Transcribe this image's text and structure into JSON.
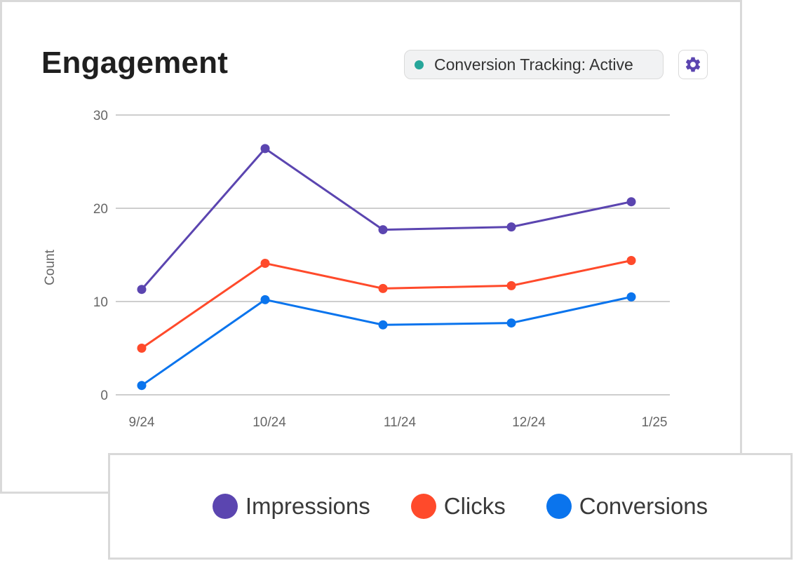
{
  "header": {
    "title": "Engagement",
    "status": {
      "label": "Conversion Tracking: Active",
      "dot_color": "#26a69a"
    },
    "settings_icon": "gear-icon",
    "settings_color": "#5b45b0"
  },
  "chart_data": {
    "type": "line",
    "title": "Engagement",
    "ylabel": "Count",
    "xlabel": "",
    "categories": [
      "9/24",
      "10/24",
      "11/24",
      "12/24",
      "1/25"
    ],
    "ylim": [
      0,
      30
    ],
    "yticks": [
      0,
      10,
      20,
      30
    ],
    "grid": true,
    "legend_position": "bottom",
    "series": [
      {
        "name": "Impressions",
        "color": "#5b45b0",
        "values": [
          11.3,
          26.4,
          17.7,
          18.0,
          20.7
        ]
      },
      {
        "name": "Clicks",
        "color": "#ff4a2b",
        "values": [
          5.0,
          14.1,
          11.4,
          11.7,
          14.4
        ]
      },
      {
        "name": "Conversions",
        "color": "#0a74ed",
        "values": [
          1.0,
          10.2,
          7.5,
          7.7,
          10.5
        ]
      }
    ]
  }
}
